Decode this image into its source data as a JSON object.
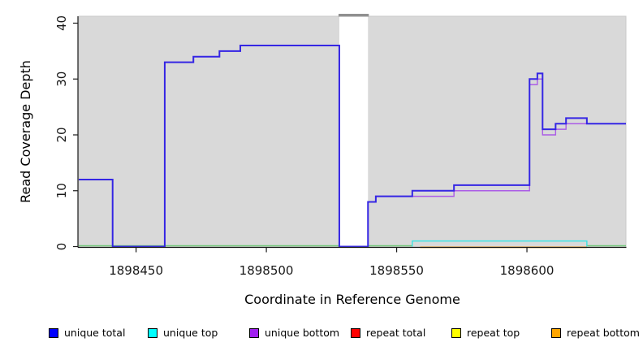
{
  "chart_data": {
    "type": "line",
    "step": true,
    "title": "",
    "xlabel": "Coordinate in Reference Genome",
    "ylabel": "Read Coverage Depth",
    "xlim": [
      1898428,
      1898638
    ],
    "ylim": [
      0,
      40
    ],
    "x_ticks": [
      1898450,
      1898500,
      1898550,
      1898600
    ],
    "y_ticks": [
      0,
      10,
      20,
      30,
      40
    ],
    "grid": false,
    "legend_position": "bottom",
    "panel_bg": "#d9d9d9",
    "axis_color": "#1a1a1a",
    "masked_region": {
      "x_start": 1898528,
      "x_end": 1898539,
      "fill": "#ffffff",
      "cap_color": "#909090"
    },
    "zero_baseline": {
      "color": "#70c878",
      "value": 0,
      "segments": [
        [
          1898428,
          1898556
        ],
        [
          1898623,
          1898638
        ]
      ]
    },
    "series": [
      {
        "name": "unique total",
        "color": "#0000ff",
        "line_color": "#3526e4",
        "line_width": 2,
        "visible": true,
        "x_end": 1898638,
        "steps": [
          [
            1898428,
            12
          ],
          [
            1898441,
            0
          ],
          [
            1898461,
            33
          ],
          [
            1898472,
            34
          ],
          [
            1898482,
            35
          ],
          [
            1898490,
            36
          ],
          [
            1898528,
            0
          ],
          [
            1898539,
            8
          ],
          [
            1898542,
            9
          ],
          [
            1898556,
            10
          ],
          [
            1898572,
            11
          ],
          [
            1898601,
            30
          ],
          [
            1898604,
            31
          ],
          [
            1898606,
            21
          ],
          [
            1898611,
            22
          ],
          [
            1898615,
            23
          ],
          [
            1898623,
            22
          ]
        ]
      },
      {
        "name": "unique top",
        "color": "#00ffff",
        "line_color": "#3fe3e3",
        "line_width": 1.4,
        "visible": true,
        "x_end": 1898623,
        "steps": [
          [
            1898556,
            0
          ],
          [
            1898556,
            1
          ],
          [
            1898623,
            0
          ]
        ]
      },
      {
        "name": "unique bottom",
        "color": "#a020f0",
        "line_color": "#ab5ce6",
        "line_width": 1.4,
        "visible": true,
        "x_end": 1898638,
        "steps": [
          [
            1898428,
            12
          ],
          [
            1898441,
            0
          ],
          [
            1898461,
            33
          ],
          [
            1898472,
            34
          ],
          [
            1898482,
            35
          ],
          [
            1898490,
            36
          ],
          [
            1898528,
            0
          ],
          [
            1898539,
            8
          ],
          [
            1898542,
            9
          ],
          [
            1898572,
            10
          ],
          [
            1898601,
            29
          ],
          [
            1898604,
            30
          ],
          [
            1898606,
            20
          ],
          [
            1898611,
            21
          ],
          [
            1898615,
            22
          ]
        ]
      },
      {
        "name": "repeat total",
        "color": "#ff0000",
        "line_color": "#ff0000",
        "line_width": 1.4,
        "visible": false,
        "x_end": 1898638,
        "steps": [
          [
            1898428,
            0
          ]
        ]
      },
      {
        "name": "repeat top",
        "color": "#ffff00",
        "line_color": "#ffff00",
        "line_width": 1.4,
        "visible": false,
        "x_end": 1898638,
        "steps": [
          [
            1898428,
            0
          ]
        ]
      },
      {
        "name": "repeat bottom",
        "color": "#ffa500",
        "line_color": "#ff9d00",
        "line_width": 1.8,
        "visible": true,
        "x_end": 1898623,
        "steps": [
          [
            1898559,
            0
          ]
        ]
      }
    ]
  },
  "legend": {
    "items": [
      {
        "label": "unique total",
        "color": "#0000ff"
      },
      {
        "label": "unique top",
        "color": "#00ffff"
      },
      {
        "label": "unique bottom",
        "color": "#a020f0"
      },
      {
        "label": "repeat total",
        "color": "#ff0000"
      },
      {
        "label": "repeat top",
        "color": "#ffff00"
      },
      {
        "label": "repeat bottom",
        "color": "#ffa500"
      }
    ]
  }
}
